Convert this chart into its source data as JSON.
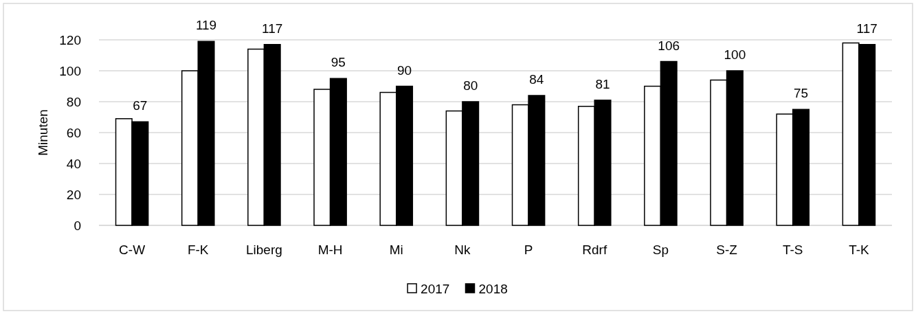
{
  "chart_data": {
    "type": "bar",
    "ylabel": "Minuten",
    "categories": [
      "C-W",
      "F-K",
      "Liberg",
      "M-H",
      "Mi",
      "Nk",
      "P",
      "Rdrf",
      "Sp",
      "S-Z",
      "T-S",
      "T-K"
    ],
    "series": [
      {
        "name": "2017",
        "color": "#ffffff",
        "values": [
          69,
          100,
          114,
          88,
          86,
          74,
          78,
          77,
          90,
          94,
          72,
          118
        ]
      },
      {
        "name": "2018",
        "color": "#000000",
        "values": [
          67,
          119,
          117,
          95,
          90,
          80,
          84,
          81,
          106,
          100,
          75,
          117
        ],
        "value_labels": [
          "67",
          "119",
          "117",
          "95",
          "90",
          "80",
          "84",
          "81",
          "106",
          "100",
          "75",
          "117"
        ]
      }
    ],
    "ylim": [
      0,
      120
    ],
    "yticks": [
      0,
      20,
      40,
      60,
      80,
      100,
      120
    ],
    "grid": "y",
    "legend": "bottom"
  }
}
